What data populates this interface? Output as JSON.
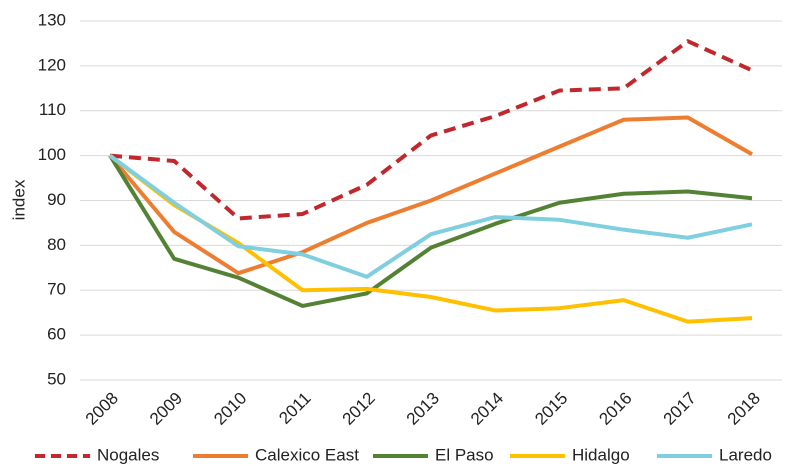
{
  "chart_data": {
    "type": "line",
    "y_label": "index",
    "categories": [
      "2008",
      "2009",
      "2010",
      "2011",
      "2012",
      "2013",
      "2014",
      "2015",
      "2016",
      "2017",
      "2018"
    ],
    "series": [
      {
        "name": "Nogales",
        "color": "#c0282d",
        "line_style": "dashed",
        "values": [
          100,
          98.8,
          86,
          87,
          93.5,
          104.5,
          108.8,
          114.5,
          115,
          125.5,
          119
        ]
      },
      {
        "name": "Calexico East",
        "color": "#ed7d31",
        "values": [
          100,
          83,
          73.8,
          78.5,
          85,
          90,
          96,
          102,
          108,
          108.5,
          100.3
        ]
      },
      {
        "name": "El Paso",
        "color": "#548235",
        "values": [
          100,
          77,
          72.8,
          66.5,
          69.3,
          79.5,
          84.8,
          89.5,
          91.5,
          92,
          90.5
        ]
      },
      {
        "name": "Hidalgo",
        "color": "#ffc000",
        "values": [
          100,
          89,
          80.5,
          70,
          70.3,
          68.5,
          65.5,
          66,
          67.8,
          63,
          63.8
        ]
      },
      {
        "name": "Laredo",
        "color": "#7fcfe0",
        "values": [
          100,
          89.5,
          79.8,
          78,
          73,
          82.5,
          86.3,
          85.7,
          83.5,
          81.7,
          84.7
        ]
      }
    ],
    "ylim": [
      50,
      130
    ],
    "yticks": [
      50,
      60,
      70,
      80,
      90,
      100,
      110,
      120,
      130
    ],
    "grid": true,
    "legend": "bottom"
  }
}
